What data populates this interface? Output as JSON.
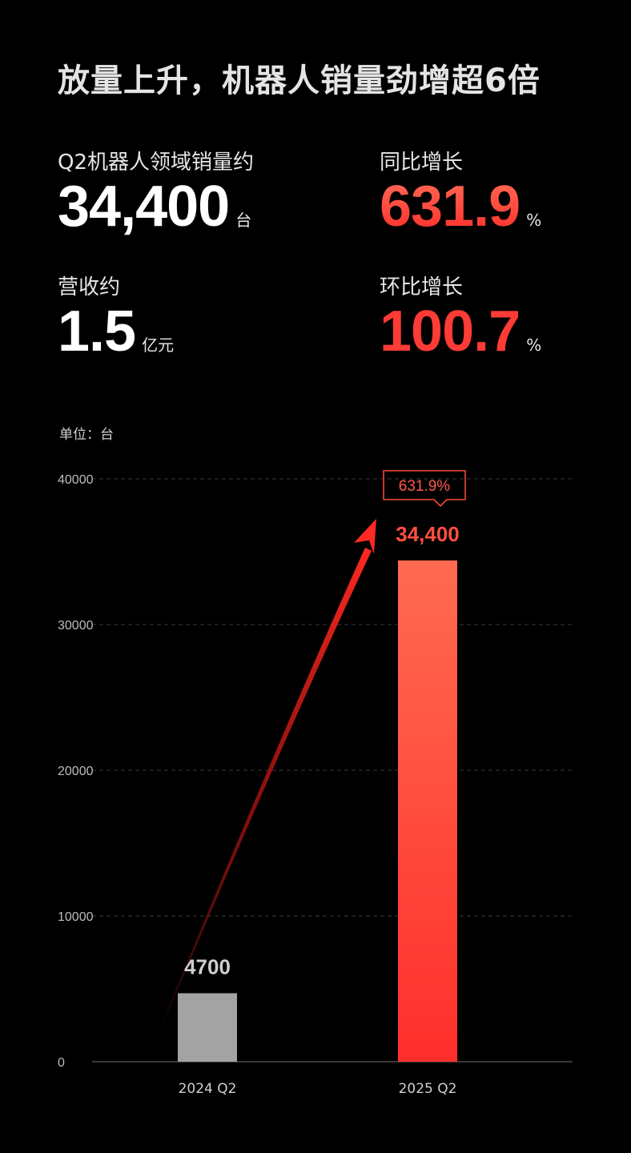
{
  "headline": "放量上升，机器人销量劲增超6倍",
  "stats": {
    "sales": {
      "label": "Q2机器人领域销量约",
      "value": "34,400",
      "unit": "台"
    },
    "yoy": {
      "label": "同比增长",
      "value": "631.9",
      "unit": "%"
    },
    "revenue": {
      "label": "营收约",
      "value": "1.5",
      "unit": "亿元"
    },
    "qoq": {
      "label": "环比增长",
      "value": "100.7",
      "unit": "%"
    }
  },
  "unit_note": "单位：台",
  "colors": {
    "accent_red": "#ff3b35",
    "bar_grey": "#a3a3a3",
    "bar_red_top": "#ff6a52",
    "bar_red_bottom": "#ff2f2c",
    "background": "#000000"
  },
  "chart_data": {
    "type": "bar",
    "categories": [
      "2024 Q2",
      "2025 Q2"
    ],
    "values": [
      4700,
      34400
    ],
    "data_labels": [
      "4700",
      "34,400"
    ],
    "ylim": [
      0,
      40000
    ],
    "yticks": [
      "0",
      "10000",
      "20000",
      "30000",
      "40000"
    ],
    "grid": true,
    "annotations": [
      {
        "type": "callout",
        "text": "631.9%",
        "target": "2025 Q2"
      },
      {
        "type": "arrow",
        "from": "2024 Q2",
        "to": "2025 Q2"
      }
    ],
    "title": "",
    "xlabel": "",
    "ylabel": ""
  }
}
